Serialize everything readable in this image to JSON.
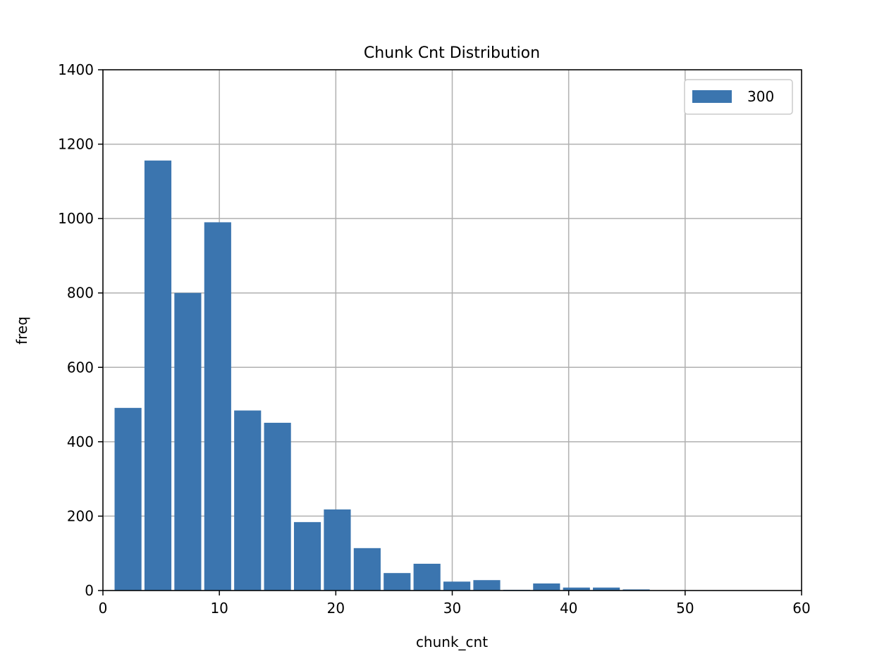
{
  "chart_data": {
    "type": "bar",
    "title": "Chunk Cnt Distribution",
    "xlabel": "chunk_cnt",
    "ylabel": "freq",
    "xlim": [
      0,
      60
    ],
    "ylim": [
      0,
      1400
    ],
    "xticks": [
      0,
      10,
      20,
      30,
      40,
      50,
      60
    ],
    "yticks": [
      0,
      200,
      400,
      600,
      800,
      1000,
      1200,
      1400
    ],
    "xtick_labels": [
      "0",
      "10",
      "20",
      "30",
      "40",
      "50",
      "60"
    ],
    "ytick_labels": [
      "0",
      "200",
      "400",
      "600",
      "800",
      "1000",
      "1200",
      "1400"
    ],
    "grid": true,
    "legend_position": "top-right",
    "series": [
      {
        "name": "300",
        "color": "#3b75af",
        "bin_width": 2.5676,
        "bin_starts": [
          1.0,
          3.5676,
          6.1351,
          8.7027,
          11.2703,
          13.8378,
          16.4054,
          18.973,
          21.5405,
          24.1081,
          26.6757,
          29.2432,
          31.8108,
          34.3784,
          36.9459,
          39.5135,
          42.0811,
          44.6486,
          47.2162,
          49.7838,
          52.3514,
          54.9189
        ],
        "values": [
          491,
          1156,
          800,
          990,
          484,
          451,
          184,
          218,
          114,
          47,
          72,
          24,
          28,
          2,
          19,
          8,
          8,
          3,
          1,
          1,
          1,
          1
        ]
      }
    ]
  }
}
